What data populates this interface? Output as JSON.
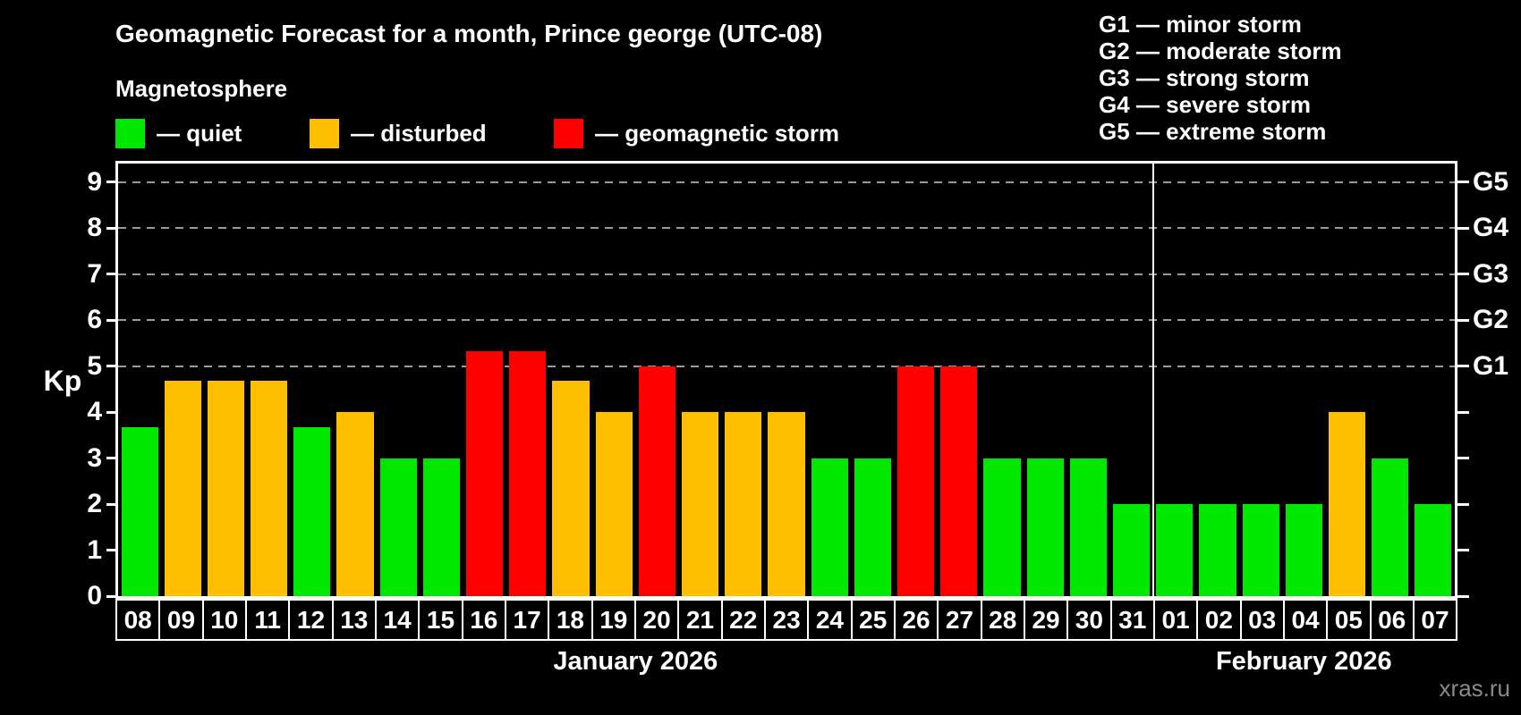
{
  "title": "Geomagnetic Forecast for a month, Prince george (UTC-08)",
  "subtitle": "Magnetosphere",
  "kp_axis_label": "Kp",
  "watermark": "xras.ru",
  "legend": {
    "items": [
      {
        "key": "quiet",
        "label": "— quiet",
        "color": "#00e800"
      },
      {
        "key": "disturbed",
        "label": "— disturbed",
        "color": "#ffbe00"
      },
      {
        "key": "storm",
        "label": "— geomagnetic storm",
        "color": "#ff0000"
      }
    ]
  },
  "g_legend": {
    "lines": [
      "G1 — minor storm",
      "G2 — moderate storm",
      "G3 — strong storm",
      "G4 — severe storm",
      "G5 — extreme storm"
    ]
  },
  "chart_data": {
    "type": "bar",
    "title": "Geomagnetic Forecast for a month, Prince george (UTC-08)",
    "ylabel": "Kp",
    "ylim": [
      0,
      9.4
    ],
    "y_ticks": [
      0,
      1,
      2,
      3,
      4,
      5,
      6,
      7,
      8,
      9
    ],
    "gridlines_at_kp": [
      5,
      6,
      7,
      8,
      9
    ],
    "grid": "dashed horizontal lines at G-storm levels only",
    "legend_position": "top-left",
    "right_axis_labels": [
      {
        "kp": 5,
        "label": "G1"
      },
      {
        "kp": 6,
        "label": "G2"
      },
      {
        "kp": 7,
        "label": "G3"
      },
      {
        "kp": 8,
        "label": "G4"
      },
      {
        "kp": 9,
        "label": "G5"
      }
    ],
    "months": [
      {
        "label": "January 2026",
        "days": 24
      },
      {
        "label": "February 2026",
        "days": 7
      }
    ],
    "bars": [
      {
        "day": "08",
        "kp": 3.67,
        "level": "quiet"
      },
      {
        "day": "09",
        "kp": 4.67,
        "level": "disturbed"
      },
      {
        "day": "10",
        "kp": 4.67,
        "level": "disturbed"
      },
      {
        "day": "11",
        "kp": 4.67,
        "level": "disturbed"
      },
      {
        "day": "12",
        "kp": 3.67,
        "level": "quiet"
      },
      {
        "day": "13",
        "kp": 4,
        "level": "disturbed"
      },
      {
        "day": "14",
        "kp": 3,
        "level": "quiet"
      },
      {
        "day": "15",
        "kp": 3,
        "level": "quiet"
      },
      {
        "day": "16",
        "kp": 5.33,
        "level": "storm"
      },
      {
        "day": "17",
        "kp": 5.33,
        "level": "storm"
      },
      {
        "day": "18",
        "kp": 4.67,
        "level": "disturbed"
      },
      {
        "day": "19",
        "kp": 4,
        "level": "disturbed"
      },
      {
        "day": "20",
        "kp": 5,
        "level": "storm"
      },
      {
        "day": "21",
        "kp": 4,
        "level": "disturbed"
      },
      {
        "day": "22",
        "kp": 4,
        "level": "disturbed"
      },
      {
        "day": "23",
        "kp": 4,
        "level": "disturbed"
      },
      {
        "day": "24",
        "kp": 3,
        "level": "quiet"
      },
      {
        "day": "25",
        "kp": 3,
        "level": "quiet"
      },
      {
        "day": "26",
        "kp": 5,
        "level": "storm"
      },
      {
        "day": "27",
        "kp": 5,
        "level": "storm"
      },
      {
        "day": "28",
        "kp": 3,
        "level": "quiet"
      },
      {
        "day": "29",
        "kp": 3,
        "level": "quiet"
      },
      {
        "day": "30",
        "kp": 3,
        "level": "quiet"
      },
      {
        "day": "31",
        "kp": 2,
        "level": "quiet"
      },
      {
        "day": "01",
        "kp": 2,
        "level": "quiet"
      },
      {
        "day": "02",
        "kp": 2,
        "level": "quiet"
      },
      {
        "day": "03",
        "kp": 2,
        "level": "quiet"
      },
      {
        "day": "04",
        "kp": 2,
        "level": "quiet"
      },
      {
        "day": "05",
        "kp": 4,
        "level": "disturbed"
      },
      {
        "day": "06",
        "kp": 3,
        "level": "quiet"
      },
      {
        "day": "07",
        "kp": 2,
        "level": "quiet"
      }
    ]
  }
}
